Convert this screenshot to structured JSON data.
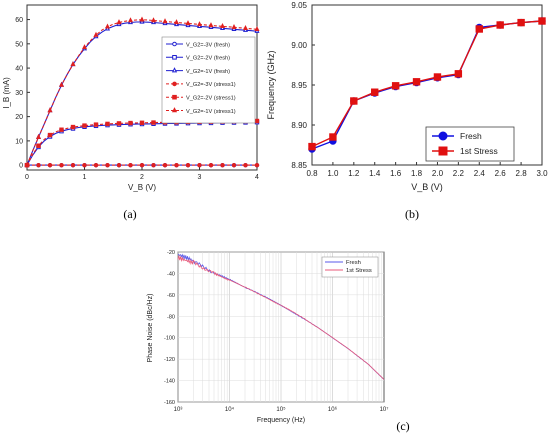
{
  "chart_data": [
    {
      "id": "a",
      "type": "line",
      "caption": "(a)",
      "xlabel": "V_B (V)",
      "ylabel": "I_B (mA)",
      "xlim": [
        0,
        4
      ],
      "ylim": [
        -2,
        66
      ],
      "xticks": [
        "0",
        "1",
        "2",
        "3",
        "4"
      ],
      "yticks": [
        "0",
        "10",
        "20",
        "30",
        "40",
        "50",
        "60"
      ],
      "x": [
        0,
        0.1,
        0.2,
        0.3,
        0.4,
        0.5,
        0.6,
        0.7,
        0.8,
        0.9,
        1.0,
        1.1,
        1.2,
        1.3,
        1.4,
        1.5,
        1.6,
        1.7,
        1.8,
        1.9,
        2.0,
        2.1,
        2.2,
        2.3,
        2.4,
        2.5,
        2.6,
        2.7,
        2.8,
        2.9,
        3.0,
        3.1,
        3.2,
        3.3,
        3.4,
        3.5,
        3.6,
        3.7,
        3.8,
        3.9,
        4.0
      ],
      "legend_position": "right",
      "series": [
        {
          "name": "V_G2=-3V (fresh)",
          "color": "#1f1fd0",
          "marker": "circle",
          "dashed": false,
          "values": [
            0,
            0,
            0,
            0,
            0,
            0,
            0,
            0,
            0,
            0,
            0,
            0,
            0,
            0,
            0,
            0,
            0,
            0,
            0,
            0,
            0,
            0,
            0,
            0,
            0,
            0,
            0,
            0,
            0,
            0,
            0,
            0,
            0,
            0,
            0,
            0,
            0,
            0,
            0,
            0,
            0
          ]
        },
        {
          "name": "V_G2=-2V (fresh)",
          "color": "#1f1fd0",
          "marker": "square",
          "dashed": false,
          "values": [
            0,
            4.2,
            7.5,
            10.0,
            11.8,
            13.1,
            14.0,
            14.6,
            15.1,
            15.5,
            15.8,
            16.0,
            16.2,
            16.35,
            16.5,
            16.6,
            16.7,
            16.8,
            16.85,
            16.9,
            16.95,
            17.0,
            17.05,
            17.1,
            17.15,
            17.2,
            17.2,
            17.25,
            17.3,
            17.3,
            17.35,
            17.4,
            17.4,
            17.45,
            17.5,
            17.5,
            17.55,
            17.6,
            17.6,
            17.65,
            17.7
          ]
        },
        {
          "name": "V_G2=-1V (fresh)",
          "color": "#1f1fd0",
          "marker": "triangle",
          "dashed": false,
          "values": [
            0,
            6,
            11.5,
            17,
            22.5,
            28,
            33,
            37.5,
            41.5,
            45,
            48,
            50.8,
            53,
            54.8,
            56.2,
            57.2,
            58,
            58.5,
            58.8,
            59,
            59,
            58.9,
            58.8,
            58.6,
            58.4,
            58.2,
            58,
            57.8,
            57.6,
            57.4,
            57.2,
            57,
            56.8,
            56.6,
            56.4,
            56.2,
            56,
            55.8,
            55.6,
            55.4,
            55.2
          ]
        },
        {
          "name": "V_G2=-3V (stress1)",
          "color": "#e02020",
          "marker": "circle",
          "dashed": true,
          "values": [
            0,
            0,
            0,
            0,
            0,
            0,
            0,
            0,
            0,
            0,
            0,
            0,
            0,
            0,
            0,
            0,
            0,
            0,
            0,
            0,
            0,
            0,
            0,
            0,
            0,
            0,
            0,
            0,
            0,
            0,
            0,
            0,
            0,
            0,
            0,
            0,
            0,
            0,
            0,
            0,
            0
          ]
        },
        {
          "name": "V_G2=-2V (stress1)",
          "color": "#e02020",
          "marker": "square",
          "dashed": true,
          "values": [
            0,
            4.5,
            8,
            10.6,
            12.4,
            13.7,
            14.6,
            15.2,
            15.7,
            16.0,
            16.3,
            16.5,
            16.7,
            16.85,
            17.0,
            17.1,
            17.2,
            17.3,
            17.35,
            17.4,
            17.45,
            17.5,
            17.55,
            17.6,
            17.65,
            17.7,
            17.7,
            17.75,
            17.8,
            17.8,
            17.85,
            17.9,
            17.9,
            17.95,
            18.0,
            18.0,
            18.05,
            18.1,
            18.1,
            18.15,
            18.2
          ]
        },
        {
          "name": "V_G2=-1V (stress1)",
          "color": "#e02020",
          "marker": "triangle",
          "dashed": true,
          "values": [
            0,
            6,
            11.5,
            17,
            22.5,
            28,
            33,
            37.5,
            41.5,
            45.2,
            48.5,
            51.2,
            53.6,
            55.6,
            57,
            58.1,
            58.8,
            59.3,
            59.6,
            59.8,
            59.9,
            59.8,
            59.6,
            59.4,
            59.2,
            59,
            58.8,
            58.6,
            58.4,
            58.2,
            58,
            57.8,
            57.6,
            57.4,
            57.2,
            57,
            56.8,
            56.6,
            56.4,
            56.2,
            56
          ]
        }
      ]
    },
    {
      "id": "b",
      "type": "line",
      "caption": "(b)",
      "xlabel": "V_B (V)",
      "ylabel": "Frequency (GHz)",
      "xlim": [
        0.8,
        3.0
      ],
      "ylim": [
        8.85,
        9.05
      ],
      "xticks": [
        "0.8",
        "1.0",
        "1.2",
        "1.4",
        "1.6",
        "1.8",
        "2.0",
        "2.2",
        "2.4",
        "2.6",
        "2.8",
        "3.0"
      ],
      "yticks": [
        "8.85",
        "8.90",
        "8.95",
        "9.00",
        "9.05"
      ],
      "x": [
        0.8,
        1.0,
        1.2,
        1.4,
        1.6,
        1.8,
        2.0,
        2.2,
        2.4,
        2.6,
        2.8,
        3.0
      ],
      "legend_position": "bottom-right",
      "series": [
        {
          "name": "Fresh",
          "color": "#1010e0",
          "marker": "circle",
          "values": [
            8.87,
            8.88,
            8.93,
            8.94,
            8.948,
            8.953,
            8.959,
            8.963,
            9.022,
            9.025,
            9.028,
            9.03
          ]
        },
        {
          "name": "1st Stress",
          "color": "#e01010",
          "marker": "square",
          "values": [
            8.873,
            8.885,
            8.93,
            8.941,
            8.949,
            8.954,
            8.96,
            8.964,
            9.02,
            9.025,
            9.028,
            9.03
          ]
        }
      ]
    },
    {
      "id": "c",
      "type": "line",
      "caption": "(c)",
      "xlabel": "Frequency (Hz)",
      "ylabel": "Phase Noise (dBc/Hz)",
      "x_scale": "log",
      "xlim": [
        1000,
        10000000
      ],
      "ylim": [
        -160,
        -20
      ],
      "xticks": [
        "10³",
        "10⁴",
        "10⁵",
        "10⁶",
        "10⁷"
      ],
      "yticks": [
        "-20",
        "-40",
        "-60",
        "-80",
        "-100",
        "-120",
        "-140",
        "-160"
      ],
      "grid": true,
      "legend_position": "top-right",
      "x": [
        1000,
        2000,
        5000,
        10000,
        20000,
        50000,
        100000,
        200000,
        500000,
        1000000,
        2000000,
        5000000,
        10000000
      ],
      "series": [
        {
          "name": "Fresh",
          "color": "#5a5ae8",
          "values": [
            -23,
            -30,
            -39,
            -46,
            -53,
            -62,
            -70,
            -78,
            -90,
            -100,
            -110,
            -125,
            -139
          ]
        },
        {
          "name": "1st Stress",
          "color": "#e85a7a",
          "values": [
            -23,
            -30,
            -39,
            -46,
            -53,
            -62,
            -70,
            -78,
            -90,
            -100,
            -110,
            -125,
            -139
          ]
        }
      ]
    }
  ]
}
